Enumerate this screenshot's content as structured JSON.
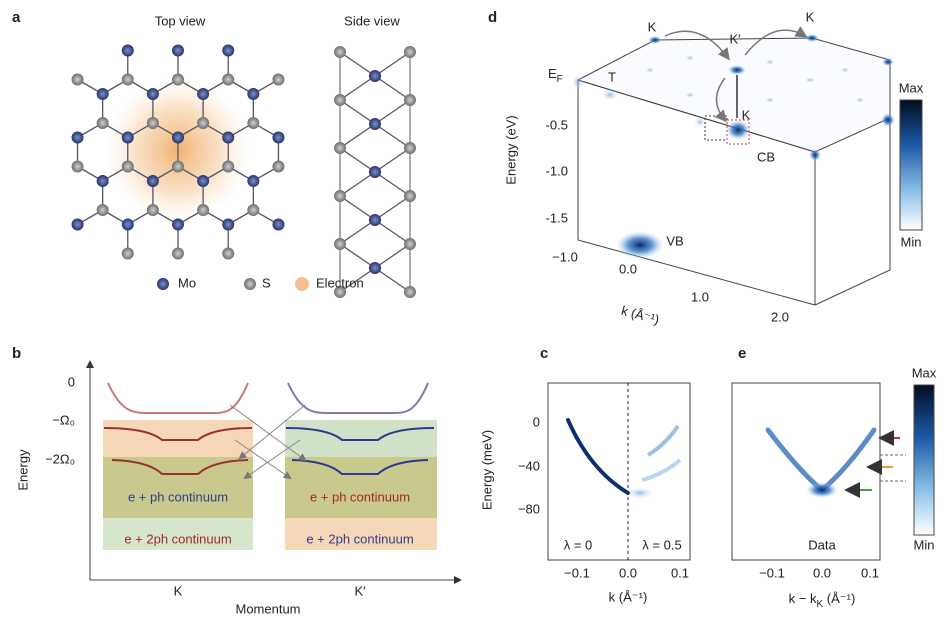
{
  "panel_a": {
    "label": "a",
    "top_view": "Top view",
    "side_view": "Side view",
    "legend": [
      "Mo",
      "S",
      "Electron"
    ]
  },
  "panel_b": {
    "label": "b",
    "y_axis_label": "Energy",
    "y_ticks": [
      "0",
      "−Ω₀",
      "−2Ω₀"
    ],
    "x_ticks": [
      "K",
      "K′"
    ],
    "x_axis_label": "Momentum",
    "regions": [
      "e + ph continuum",
      "e + 2ph continuum",
      "e + ph continuum",
      "e + 2ph continuum"
    ]
  },
  "panel_c": {
    "label": "c",
    "y_axis_label": "Energy (meV)",
    "y_ticks": [
      "0",
      "−40",
      "−80"
    ],
    "x_ticks": [
      "−0.1",
      "0.0",
      "0.1"
    ],
    "x_axis_label": "k (Å⁻¹)",
    "annotations": [
      "λ = 0",
      "λ = 0.5"
    ]
  },
  "panel_d": {
    "label": "d",
    "y_axis_label": "Energy (eV)",
    "y_ticks": [
      "-0.5",
      "-1.0",
      "-1.5"
    ],
    "x_ticks": [
      "−1.0",
      "0.0",
      "1.0",
      "2.0"
    ],
    "x_axis_label": "k (Å⁻¹)",
    "points": [
      "K",
      "K′",
      "K",
      "T",
      "K",
      "CB",
      "VB"
    ],
    "fermi": {
      "main": "E",
      "sub": "F"
    },
    "colorbar": [
      "Max",
      "Min"
    ]
  },
  "panel_e": {
    "label": "e",
    "x_ticks": [
      "−0.1",
      "0.0",
      "0.1"
    ],
    "x_axis_label": {
      "main": "k − k",
      "sub": "K",
      "tail": " (Å⁻¹)"
    },
    "annotation": "Data",
    "colorbar": [
      "Max",
      "Min"
    ]
  }
}
